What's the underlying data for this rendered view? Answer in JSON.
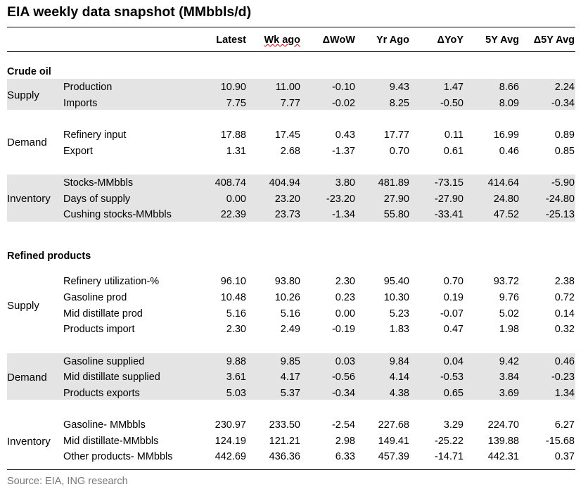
{
  "title": "EIA weekly data snapshot (MMbbls/d)",
  "columns": [
    "Latest",
    "Wk ago",
    "ΔWoW",
    "Yr Ago",
    "ΔYoY",
    "5Y Avg",
    "Δ5Y Avg"
  ],
  "sections": {
    "crude": "Crude oil",
    "refined": "Refined products"
  },
  "groups": {
    "crude_supply": "Supply",
    "crude_demand": "Demand",
    "crude_inventory": "Inventory",
    "ref_supply": "Supply",
    "ref_demand": "Demand",
    "ref_inventory": "Inventory"
  },
  "rows": [
    {
      "label": "Production",
      "v": [
        "10.90",
        "11.00",
        "-0.10",
        "9.43",
        "1.47",
        "8.66",
        "2.24"
      ]
    },
    {
      "label": "Imports",
      "v": [
        "7.75",
        "7.77",
        "-0.02",
        "8.25",
        "-0.50",
        "8.09",
        "-0.34"
      ]
    },
    {
      "label": "Refinery input",
      "v": [
        "17.88",
        "17.45",
        "0.43",
        "17.77",
        "0.11",
        "16.99",
        "0.89"
      ]
    },
    {
      "label": "Export",
      "v": [
        "1.31",
        "2.68",
        "-1.37",
        "0.70",
        "0.61",
        "0.46",
        "0.85"
      ]
    },
    {
      "label": "Stocks-MMbbls",
      "v": [
        "408.74",
        "404.94",
        "3.80",
        "481.89",
        "-73.15",
        "414.64",
        "-5.90"
      ]
    },
    {
      "label": "Days of supply",
      "v": [
        "0.00",
        "23.20",
        "-23.20",
        "27.90",
        "-27.90",
        "24.80",
        "-24.80"
      ]
    },
    {
      "label": "Cushing stocks-MMbbls",
      "v": [
        "22.39",
        "23.73",
        "-1.34",
        "55.80",
        "-33.41",
        "47.52",
        "-25.13"
      ]
    },
    {
      "label": "Refinery utilization-%",
      "v": [
        "96.10",
        "93.80",
        "2.30",
        "95.40",
        "0.70",
        "93.72",
        "2.38"
      ]
    },
    {
      "label": "Gasoline prod",
      "v": [
        "10.48",
        "10.26",
        "0.23",
        "10.30",
        "0.19",
        "9.76",
        "0.72"
      ]
    },
    {
      "label": "Mid distillate prod",
      "v": [
        "5.16",
        "5.16",
        "0.00",
        "5.23",
        "-0.07",
        "5.02",
        "0.14"
      ]
    },
    {
      "label": "Products import",
      "v": [
        "2.30",
        "2.49",
        "-0.19",
        "1.83",
        "0.47",
        "1.98",
        "0.32"
      ]
    },
    {
      "label": "Gasoline supplied",
      "v": [
        "9.88",
        "9.85",
        "0.03",
        "9.84",
        "0.04",
        "9.42",
        "0.46"
      ]
    },
    {
      "label": "Mid distillate supplied",
      "v": [
        "3.61",
        "4.17",
        "-0.56",
        "4.14",
        "-0.53",
        "3.84",
        "-0.23"
      ]
    },
    {
      "label": "Products exports",
      "v": [
        "5.03",
        "5.37",
        "-0.34",
        "4.38",
        "0.65",
        "3.69",
        "1.34"
      ]
    },
    {
      "label": "Gasoline- MMbbls",
      "v": [
        "230.97",
        "233.50",
        "-2.54",
        "227.68",
        "3.29",
        "224.70",
        "6.27"
      ]
    },
    {
      "label": "Mid distillate-MMbbls",
      "v": [
        "124.19",
        "121.21",
        "2.98",
        "149.41",
        "-25.22",
        "139.88",
        "-15.68"
      ]
    },
    {
      "label": "Other products- MMbbls",
      "v": [
        "442.69",
        "436.36",
        "6.33",
        "457.39",
        "-14.71",
        "442.31",
        "0.37"
      ]
    }
  ],
  "source": "Source: EIA, ING research",
  "colors": {
    "band": "#e4e4e4",
    "source_text": "#777777",
    "spell_underline": "#d00000"
  }
}
